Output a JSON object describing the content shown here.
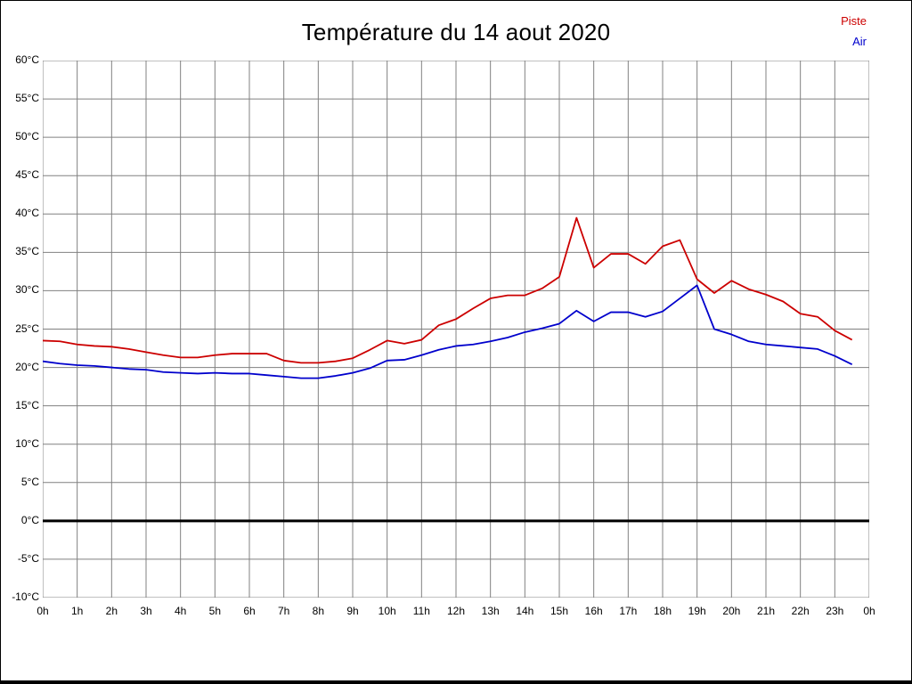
{
  "chart_data": {
    "type": "line",
    "title": "Température du 14 aout 2020",
    "xlabel": "",
    "ylabel": "",
    "xlim": [
      0,
      24
    ],
    "ylim": [
      -10,
      60
    ],
    "x_step": 1,
    "y_step": 5,
    "grid": true,
    "zero_line": true,
    "legend_position": "top-right",
    "colors": {
      "grid": "#808080",
      "zero_line": "#000000"
    },
    "x_ticks": [
      "0h",
      "1h",
      "2h",
      "3h",
      "4h",
      "5h",
      "6h",
      "7h",
      "8h",
      "9h",
      "10h",
      "11h",
      "12h",
      "13h",
      "14h",
      "15h",
      "16h",
      "17h",
      "18h",
      "19h",
      "20h",
      "21h",
      "22h",
      "23h",
      "0h"
    ],
    "y_ticks": [
      "60°C",
      "55°C",
      "50°C",
      "45°C",
      "40°C",
      "35°C",
      "30°C",
      "25°C",
      "20°C",
      "15°C",
      "10°C",
      "5°C",
      "0°C",
      "-5°C",
      "-10°C"
    ],
    "x": [
      0,
      0.5,
      1,
      1.5,
      2,
      2.5,
      3,
      3.5,
      4,
      4.5,
      5,
      5.5,
      6,
      6.5,
      7,
      7.5,
      8,
      8.5,
      9,
      9.5,
      10,
      10.5,
      11,
      11.5,
      12,
      12.5,
      13,
      13.5,
      14,
      14.5,
      15,
      15.5,
      16,
      16.5,
      17,
      17.5,
      18,
      18.5,
      19,
      19.5,
      20,
      20.5,
      21,
      21.5,
      22,
      22.5,
      23,
      23.5
    ],
    "series": [
      {
        "name": "Piste",
        "color": "#cc0000",
        "values": [
          23.5,
          23.4,
          23.0,
          22.8,
          22.7,
          22.4,
          22.0,
          21.6,
          21.3,
          21.3,
          21.6,
          21.8,
          21.8,
          21.8,
          20.9,
          20.6,
          20.6,
          20.8,
          21.2,
          22.3,
          23.5,
          23.1,
          23.6,
          25.5,
          26.3,
          27.7,
          29.0,
          29.4,
          29.4,
          30.3,
          31.8,
          39.5,
          33.0,
          34.8,
          34.8,
          33.5,
          35.8,
          36.6,
          31.5,
          29.7,
          31.3,
          30.2,
          29.5,
          28.6,
          27.0,
          26.6,
          24.8,
          23.6
        ]
      },
      {
        "name": "Air",
        "color": "#0000cc",
        "values": [
          20.8,
          20.5,
          20.3,
          20.2,
          20.0,
          19.8,
          19.7,
          19.4,
          19.3,
          19.2,
          19.3,
          19.2,
          19.2,
          19.0,
          18.8,
          18.6,
          18.6,
          18.9,
          19.3,
          19.9,
          20.9,
          21.0,
          21.6,
          22.3,
          22.8,
          23.0,
          23.4,
          23.9,
          24.6,
          25.1,
          25.7,
          27.4,
          26.0,
          27.2,
          27.2,
          26.6,
          27.3,
          29.0,
          30.7,
          25.0,
          24.3,
          23.4,
          23.0,
          22.8,
          22.6,
          22.4,
          21.5,
          20.4
        ]
      }
    ]
  }
}
